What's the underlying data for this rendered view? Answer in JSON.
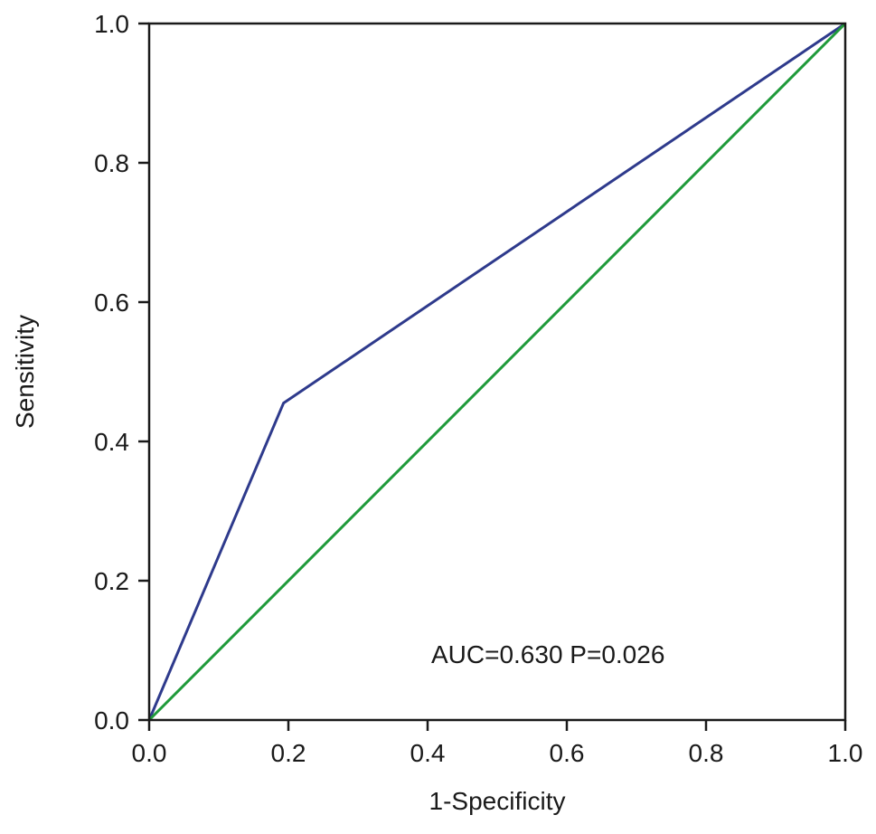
{
  "chart_data": {
    "type": "line",
    "xlabel": "1-Specificity",
    "ylabel": "Sensitivity",
    "xlim": [
      0.0,
      1.0
    ],
    "ylim": [
      0.0,
      1.0
    ],
    "x_ticks": [
      "0.0",
      "0.2",
      "0.4",
      "0.6",
      "0.8",
      "1.0"
    ],
    "y_ticks": [
      "0.0",
      "0.2",
      "0.4",
      "0.6",
      "0.8",
      "1.0"
    ],
    "grid": false,
    "series": [
      {
        "color": "#2e3a8c",
        "points": [
          [
            0.0,
            0.0
          ],
          [
            0.193,
            0.455
          ],
          [
            1.0,
            1.0
          ]
        ]
      },
      {
        "color": "#1f9a3a",
        "points": [
          [
            0.0,
            0.0
          ],
          [
            1.0,
            1.0
          ]
        ]
      }
    ],
    "annotations": [
      {
        "text": "AUC=0.630 P=0.026",
        "x": 0.573,
        "y": 0.095
      }
    ]
  }
}
